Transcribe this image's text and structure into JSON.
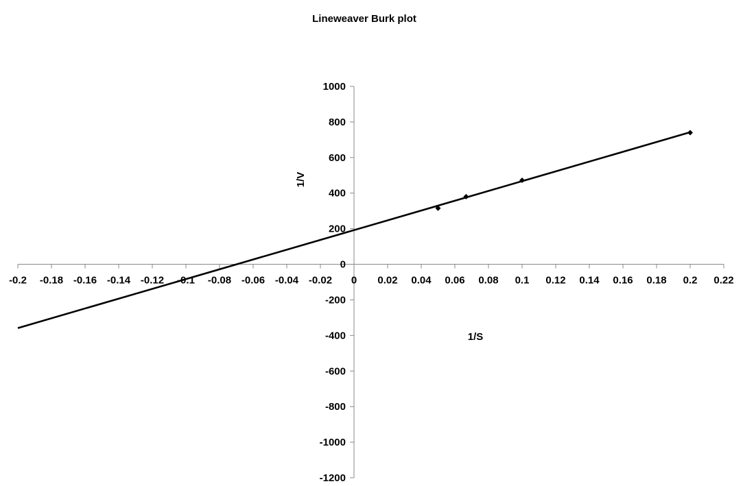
{
  "chart_data": {
    "type": "scatter",
    "title": "Lineweaver Burk plot",
    "xlabel": "1/S",
    "ylabel": "1/V",
    "xlim": [
      -0.2,
      0.22
    ],
    "ylim": [
      -1200,
      1000
    ],
    "x_ticks": [
      -0.2,
      -0.18,
      -0.16,
      -0.14,
      -0.12,
      -0.1,
      -0.08,
      -0.06,
      -0.04,
      -0.02,
      0,
      0.02,
      0.04,
      0.06,
      0.08,
      0.1,
      0.12,
      0.14,
      0.16,
      0.18,
      0.2,
      0.22
    ],
    "x_tick_labels": [
      "-0.2",
      "-0.18",
      "-0.16",
      "-0.14",
      "-0.12",
      "-0.1",
      "-0.08",
      "-0.06",
      "-0.04",
      "-0.02",
      "0",
      "0.02",
      "0.04",
      "0.06",
      "0.08",
      "0.1",
      "0.12",
      "0.14",
      "0.16",
      "0.18",
      "0.2",
      "0.22"
    ],
    "y_ticks": [
      -1200,
      -1000,
      -800,
      -600,
      -400,
      -200,
      0,
      200,
      400,
      600,
      800,
      1000
    ],
    "y_tick_labels": [
      "-1200",
      "-1000",
      "-800",
      "-600",
      "-400",
      "-200",
      "0",
      "200",
      "400",
      "600",
      "800",
      "1000"
    ],
    "grid": false,
    "legend": "none",
    "series": [
      {
        "points": [
          {
            "x": 0.05,
            "y": 315
          },
          {
            "x": 0.0667,
            "y": 380
          },
          {
            "x": 0.1,
            "y": 472
          },
          {
            "x": 0.2,
            "y": 740
          }
        ],
        "marker": "diamond"
      }
    ],
    "trendline": {
      "type": "linear",
      "x_range": [
        -0.2,
        0.2
      ],
      "slope": 2752,
      "intercept": 192
    },
    "colors": {
      "line": "#000000",
      "marker": "#000000"
    }
  }
}
